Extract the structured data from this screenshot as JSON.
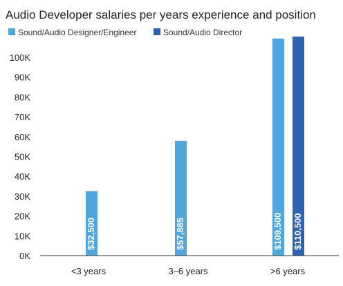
{
  "chart_data": {
    "type": "bar",
    "title": "Audio Developer salaries per years experience and position",
    "categories": [
      "<3 years",
      "3–6 years",
      ">6 years"
    ],
    "series": [
      {
        "name": "Sound/Audio Designer/Engineer",
        "color": "#4ea6dc",
        "values": [
          32500,
          57885,
          109500
        ],
        "labels": [
          "$32,500",
          "$57,885",
          "$109,500"
        ]
      },
      {
        "name": "Sound/Audio Director",
        "color": "#2e63b4",
        "values": [
          null,
          null,
          110500
        ],
        "labels": [
          null,
          null,
          "$110,500"
        ]
      }
    ],
    "yticks": [
      {
        "value": 0,
        "label": "0K"
      },
      {
        "value": 10000,
        "label": "10K"
      },
      {
        "value": 20000,
        "label": "20K"
      },
      {
        "value": 30000,
        "label": "30K"
      },
      {
        "value": 40000,
        "label": "40K"
      },
      {
        "value": 50000,
        "label": "50K"
      },
      {
        "value": 60000,
        "label": "60K"
      },
      {
        "value": 70000,
        "label": "70K"
      },
      {
        "value": 80000,
        "label": "80K"
      },
      {
        "value": 90000,
        "label": "90K"
      },
      {
        "value": 100000,
        "label": "100K"
      }
    ],
    "ylim": [
      0,
      110000
    ],
    "grid": false,
    "legend": "top-left"
  }
}
